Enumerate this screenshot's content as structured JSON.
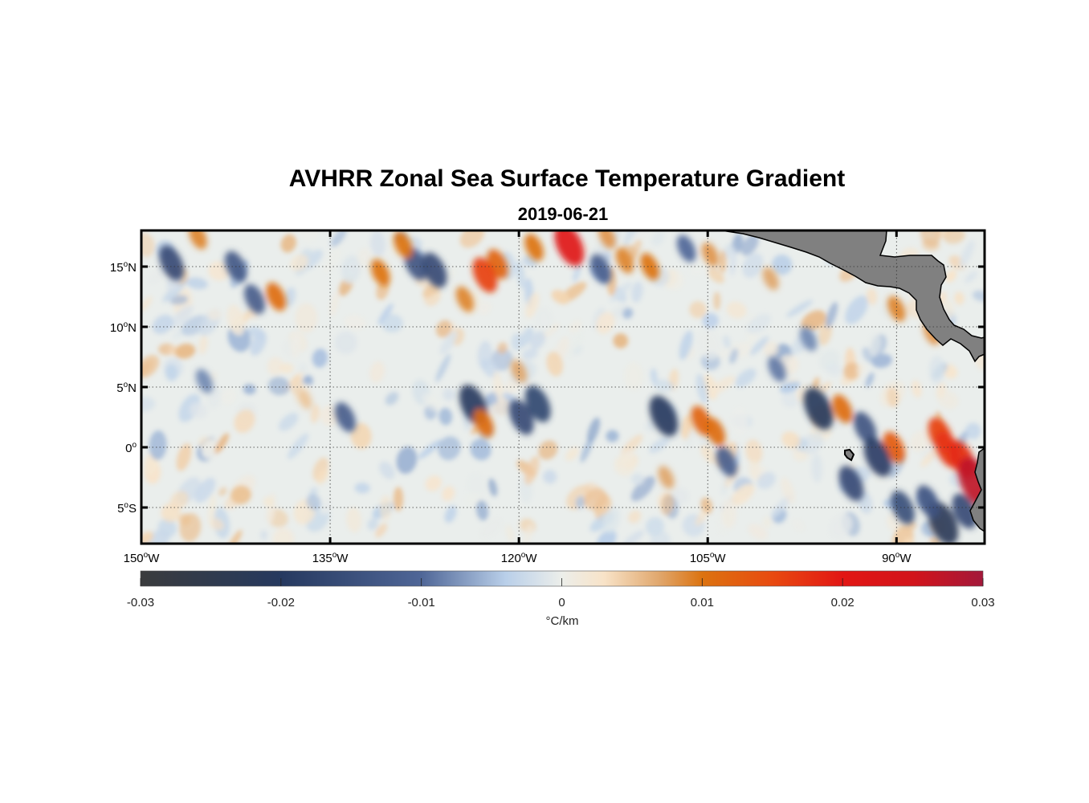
{
  "title": "AVHRR Zonal Sea Surface Temperature Gradient",
  "subtitle": "2019-06-21",
  "map": {
    "lon_range": [
      -150,
      -83
    ],
    "lat_range": [
      -8,
      18
    ],
    "lat_ticks": [
      {
        "value": 15,
        "num": "15",
        "deg": "o",
        "hemi": "N"
      },
      {
        "value": 10,
        "num": "10",
        "deg": "o",
        "hemi": "N"
      },
      {
        "value": 5,
        "num": "5",
        "deg": "o",
        "hemi": "N"
      },
      {
        "value": 0,
        "num": "0",
        "deg": "o",
        "hemi": ""
      },
      {
        "value": -5,
        "num": "5",
        "deg": "o",
        "hemi": "S"
      }
    ],
    "lon_ticks": [
      {
        "value": -150,
        "num": "150",
        "deg": "o",
        "hemi": "W"
      },
      {
        "value": -135,
        "num": "135",
        "deg": "o",
        "hemi": "W"
      },
      {
        "value": -120,
        "num": "120",
        "deg": "o",
        "hemi": "W"
      },
      {
        "value": -105,
        "num": "105",
        "deg": "o",
        "hemi": "W"
      },
      {
        "value": -90,
        "num": "90",
        "deg": "o",
        "hemi": "W"
      }
    ],
    "land_color": "#808080",
    "ocean_base_color": "#eaeeec"
  },
  "colorbar": {
    "min": -0.03,
    "max": 0.03,
    "tick_labels": [
      "-0.03",
      "-0.02",
      "-0.01",
      "0",
      "0.01",
      "0.02",
      "0.03"
    ],
    "tick_values": [
      -0.03,
      -0.02,
      -0.01,
      0,
      0.01,
      0.02,
      0.03
    ],
    "unit_label": "°C/km",
    "color_stops": [
      {
        "v": -0.03,
        "c": "#3a3b3d"
      },
      {
        "v": -0.02,
        "c": "#26395f"
      },
      {
        "v": -0.01,
        "c": "#4f6697"
      },
      {
        "v": -0.004,
        "c": "#b9cfe9"
      },
      {
        "v": 0,
        "c": "#eceeea"
      },
      {
        "v": 0.003,
        "c": "#f8e3c8"
      },
      {
        "v": 0.007,
        "c": "#e0a66b"
      },
      {
        "v": 0.01,
        "c": "#dc7310"
      },
      {
        "v": 0.015,
        "c": "#e84a10"
      },
      {
        "v": 0.02,
        "c": "#e21614"
      },
      {
        "v": 0.025,
        "c": "#d2141b"
      },
      {
        "v": 0.03,
        "c": "#a3183a"
      }
    ]
  },
  "features": [
    {
      "lon": -123.6,
      "lat": 3.5,
      "value": -0.02
    },
    {
      "lon": -122.8,
      "lat": 2.0,
      "value": 0.011
    },
    {
      "lon": -119.8,
      "lat": 2.5,
      "value": -0.016
    },
    {
      "lon": -118.5,
      "lat": 3.6,
      "value": -0.017
    },
    {
      "lon": -108.5,
      "lat": 2.6,
      "value": -0.02
    },
    {
      "lon": -105.5,
      "lat": 2.2,
      "value": 0.012
    },
    {
      "lon": -104.4,
      "lat": 1.3,
      "value": 0.011
    },
    {
      "lon": -96.2,
      "lat": 3.2,
      "value": -0.021
    },
    {
      "lon": -94.3,
      "lat": 3.2,
      "value": 0.011
    },
    {
      "lon": -92.5,
      "lat": 1.6,
      "value": -0.014
    },
    {
      "lon": -90.2,
      "lat": 0.0,
      "value": 0.013
    },
    {
      "lon": -91.5,
      "lat": -0.8,
      "value": -0.019
    },
    {
      "lon": -93.6,
      "lat": -3.0,
      "value": -0.016
    },
    {
      "lon": -89.5,
      "lat": -5.0,
      "value": -0.015
    },
    {
      "lon": -86.5,
      "lat": 1.0,
      "value": 0.016
    },
    {
      "lon": -85.9,
      "lat": -0.2,
      "value": 0.017
    },
    {
      "lon": -84.8,
      "lat": -1.0,
      "value": 0.018
    },
    {
      "lon": -83.7,
      "lat": -2.9,
      "value": 0.027
    },
    {
      "lon": -84.6,
      "lat": -5.3,
      "value": -0.016
    },
    {
      "lon": -86.3,
      "lat": -6.3,
      "value": -0.022
    },
    {
      "lon": -87.5,
      "lat": -4.5,
      "value": -0.014
    },
    {
      "lon": -121.7,
      "lat": 15.2,
      "value": 0.012
    },
    {
      "lon": -122.7,
      "lat": 14.3,
      "value": 0.016
    },
    {
      "lon": -116.0,
      "lat": 16.8,
      "value": 0.021
    },
    {
      "lon": -118.8,
      "lat": 16.6,
      "value": 0.01
    },
    {
      "lon": -113.0,
      "lat": 17.5,
      "value": 0.008
    },
    {
      "lon": -111.6,
      "lat": 15.5,
      "value": 0.009
    },
    {
      "lon": -128.2,
      "lat": 15.2,
      "value": -0.014
    },
    {
      "lon": -126.7,
      "lat": 14.7,
      "value": -0.016
    },
    {
      "lon": -129.2,
      "lat": 16.8,
      "value": 0.01
    },
    {
      "lon": -131.0,
      "lat": 14.5,
      "value": 0.01
    },
    {
      "lon": -142.5,
      "lat": 15.0,
      "value": -0.013
    },
    {
      "lon": -147.6,
      "lat": 15.3,
      "value": -0.016
    },
    {
      "lon": -141.0,
      "lat": 12.3,
      "value": -0.012
    },
    {
      "lon": -139.3,
      "lat": 12.5,
      "value": 0.011
    },
    {
      "lon": -145.5,
      "lat": 17.5,
      "value": 0.009
    },
    {
      "lon": -113.5,
      "lat": 14.8,
      "value": -0.012
    },
    {
      "lon": -109.6,
      "lat": 15.0,
      "value": 0.01
    },
    {
      "lon": -106.7,
      "lat": 16.5,
      "value": -0.01
    },
    {
      "lon": -104.8,
      "lat": 16.0,
      "value": 0.008
    },
    {
      "lon": -100.0,
      "lat": 14.0,
      "value": 0.007
    },
    {
      "lon": -124.3,
      "lat": 12.3,
      "value": 0.009
    },
    {
      "lon": -133.8,
      "lat": 2.5,
      "value": -0.012
    },
    {
      "lon": -108.3,
      "lat": -2.5,
      "value": 0.007
    },
    {
      "lon": -103.5,
      "lat": -1.2,
      "value": -0.012
    },
    {
      "lon": -120.0,
      "lat": 6.3,
      "value": 0.007
    },
    {
      "lon": -99.5,
      "lat": 6.5,
      "value": -0.009
    },
    {
      "lon": -87.2,
      "lat": 9.5,
      "value": 0.008
    },
    {
      "lon": -97.0,
      "lat": 9.0,
      "value": -0.008
    },
    {
      "lon": -90.0,
      "lat": 11.5,
      "value": 0.009
    },
    {
      "lon": -145.0,
      "lat": 5.5,
      "value": -0.008
    },
    {
      "lon": -137.0,
      "lat": 4.0,
      "value": 0.005
    }
  ]
}
